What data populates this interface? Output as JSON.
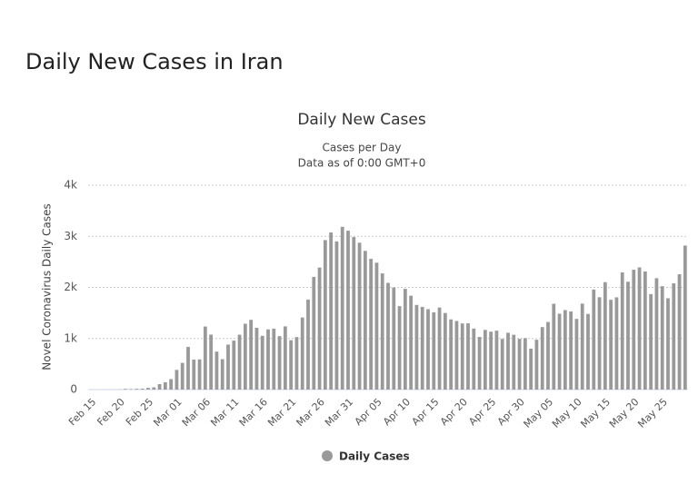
{
  "page_title": "Daily New Cases in Iran",
  "chart_data": {
    "type": "bar",
    "title": "Daily New Cases",
    "subtitle": [
      "Cases per Day",
      "Data as of 0:00 GMT+0"
    ],
    "y_label": "Novel Coronavirus Daily Cases",
    "color": "#999999",
    "grid": true,
    "legend": {
      "position": "bottom"
    },
    "series": [
      {
        "name": "Daily Cases",
        "color": "#999999",
        "values": [
          0,
          0,
          0,
          0,
          2,
          3,
          13,
          10,
          15,
          18,
          34,
          44,
          106,
          143,
          205,
          385,
          523,
          835,
          586,
          591,
          1234,
          1076,
          743,
          595,
          881,
          958,
          1075,
          1289,
          1365,
          1209,
          1053,
          1178,
          1192,
          1046,
          1237,
          966,
          1028,
          1411,
          1762,
          2206,
          2389,
          2926,
          3076,
          2901,
          3186,
          3110,
          2987,
          2875,
          2715,
          2560,
          2483,
          2274,
          2089,
          1997,
          1634,
          1972,
          1837,
          1657,
          1617,
          1574,
          1512,
          1606,
          1499,
          1374,
          1343,
          1294,
          1297,
          1194,
          1030,
          1168,
          1134,
          1153,
          991,
          1112,
          1073,
          993,
          1006,
          802,
          976,
          1223,
          1323,
          1680,
          1485,
          1556,
          1529,
          1383,
          1683,
          1481,
          1958,
          1808,
          2102,
          1757,
          1806,
          2294,
          2111,
          2346,
          2392,
          2311,
          1869,
          2180,
          2023,
          1787,
          2080,
          2258,
          2819
        ]
      }
    ],
    "categories": [
      "Feb 15",
      null,
      null,
      null,
      null,
      "Feb 20",
      null,
      null,
      null,
      null,
      "Feb 25",
      null,
      null,
      null,
      null,
      "Mar 01",
      null,
      null,
      null,
      null,
      "Mar 06",
      null,
      null,
      null,
      null,
      "Mar 11",
      null,
      null,
      null,
      null,
      "Mar 16",
      null,
      null,
      null,
      null,
      "Mar 21",
      null,
      null,
      null,
      null,
      "Mar 26",
      null,
      null,
      null,
      null,
      "Mar 31",
      null,
      null,
      null,
      null,
      "Apr 05",
      null,
      null,
      null,
      null,
      "Apr 10",
      null,
      null,
      null,
      null,
      "Apr 15",
      null,
      null,
      null,
      null,
      "Apr 20",
      null,
      null,
      null,
      null,
      "Apr 25",
      null,
      null,
      null,
      null,
      "Apr 30",
      null,
      null,
      null,
      null,
      "May 05",
      null,
      null,
      null,
      null,
      "May 10",
      null,
      null,
      null,
      null,
      "May 15",
      null,
      null,
      null,
      null,
      "May 20",
      null,
      null,
      null,
      null,
      "May 25",
      null,
      null,
      null,
      null
    ],
    "ylim": [
      0,
      4000
    ],
    "yticks": [
      0,
      {
        "value": 1000,
        "label": "1k"
      },
      {
        "value": 2000,
        "label": "2k"
      },
      {
        "value": 3000,
        "label": "3k"
      },
      {
        "value": 4000,
        "label": "4k"
      }
    ]
  }
}
